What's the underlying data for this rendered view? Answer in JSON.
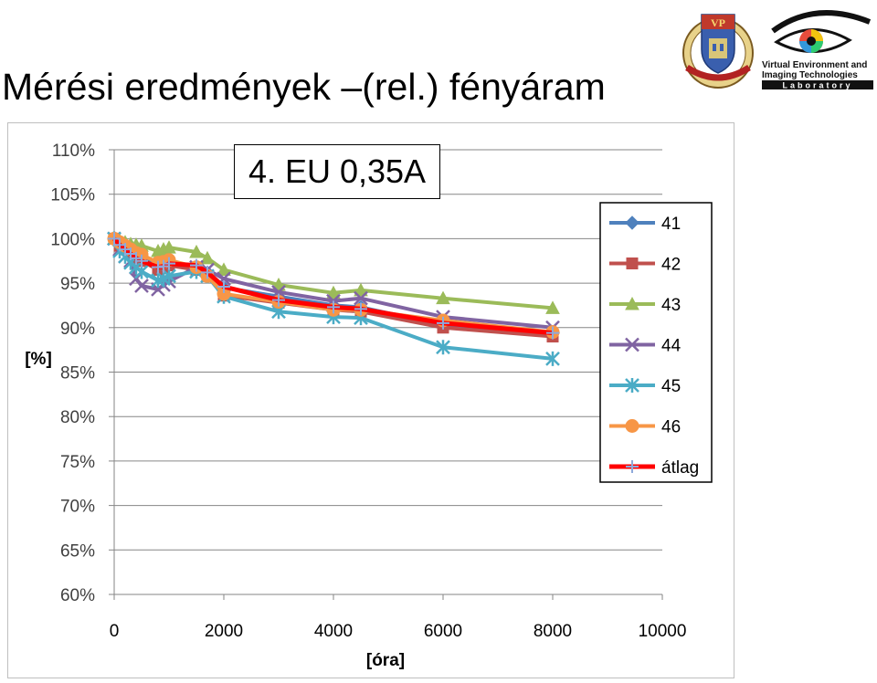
{
  "slide": {
    "title": "Mérési eredmények –(rel.) fényáram"
  },
  "logos": {
    "university": {
      "initials": "VP",
      "motto": "UNIVERSITAS · PANNONICA"
    },
    "lab": {
      "line1": "Virtual Environment and",
      "line2": "Imaging Technologies",
      "line3": "Laboratory"
    }
  },
  "chart_data": {
    "type": "line",
    "title": "4. EU 0,35A",
    "xlabel": "[óra]",
    "ylabel": "[%]",
    "xlim": [
      0,
      10000
    ],
    "ylim": [
      60,
      110
    ],
    "x_ticks": [
      0,
      2000,
      4000,
      6000,
      8000,
      10000
    ],
    "y_ticks": [
      60,
      65,
      70,
      75,
      80,
      85,
      90,
      95,
      100,
      105,
      110
    ],
    "y_tick_labels": [
      "60%",
      "65%",
      "70%",
      "75%",
      "80%",
      "85%",
      "90%",
      "95%",
      "100%",
      "105%",
      "110%"
    ],
    "grid": "horizontal",
    "legend_position": "right",
    "x": [
      0,
      100,
      200,
      300,
      400,
      500,
      800,
      900,
      1000,
      1500,
      1700,
      2000,
      3000,
      4000,
      4500,
      6000,
      8000
    ],
    "series": [
      {
        "name": "41",
        "color": "#4f81bd",
        "marker": "diamond",
        "values": [
          100,
          99.5,
          99,
          98.5,
          98.2,
          98,
          96.8,
          97,
          97.3,
          96.5,
          96.2,
          94.5,
          93.5,
          92.5,
          92.3,
          90.3,
          89.5
        ]
      },
      {
        "name": "42",
        "color": "#c0504d",
        "marker": "square",
        "values": [
          100,
          99.2,
          98.8,
          98.3,
          97.8,
          97.5,
          96.5,
          96.7,
          97,
          96.5,
          95.8,
          93.6,
          92.8,
          92,
          91.8,
          90,
          89
        ]
      },
      {
        "name": "43",
        "color": "#9bbb59",
        "marker": "triangle",
        "values": [
          100,
          99.8,
          99.6,
          99.4,
          99.3,
          99.2,
          98.6,
          98.8,
          99,
          98.5,
          97.8,
          96.5,
          94.8,
          93.9,
          94.2,
          93.3,
          92.2
        ]
      },
      {
        "name": "44",
        "color": "#8064a2",
        "marker": "x",
        "values": [
          100,
          98.8,
          98,
          97.5,
          95.5,
          94.7,
          94.3,
          94.8,
          95.2,
          96.8,
          96.5,
          95.5,
          94,
          93,
          93.3,
          91.2,
          90
        ]
      },
      {
        "name": "45",
        "color": "#4bacc6",
        "marker": "star",
        "values": [
          100,
          98.6,
          98,
          97.3,
          96.8,
          96.3,
          95.3,
          95.5,
          95.8,
          96.3,
          95.8,
          93.5,
          91.8,
          91.2,
          91.1,
          87.8,
          86.5
        ]
      },
      {
        "name": "46",
        "color": "#f79646",
        "marker": "circle",
        "values": [
          100,
          99.6,
          99.2,
          98.8,
          98.4,
          98.2,
          97.3,
          97.4,
          97.6,
          96.8,
          95.8,
          93.8,
          92.9,
          92,
          92,
          90.8,
          89.5
        ]
      },
      {
        "name": "átlag",
        "color": "#ff0000",
        "marker": "plus",
        "values": [
          100,
          99.3,
          98.8,
          98.3,
          97.8,
          97.5,
          96.8,
          96.9,
          97.2,
          97,
          96.2,
          94.6,
          93.1,
          92.3,
          92.1,
          90.5,
          89.4
        ]
      }
    ]
  }
}
